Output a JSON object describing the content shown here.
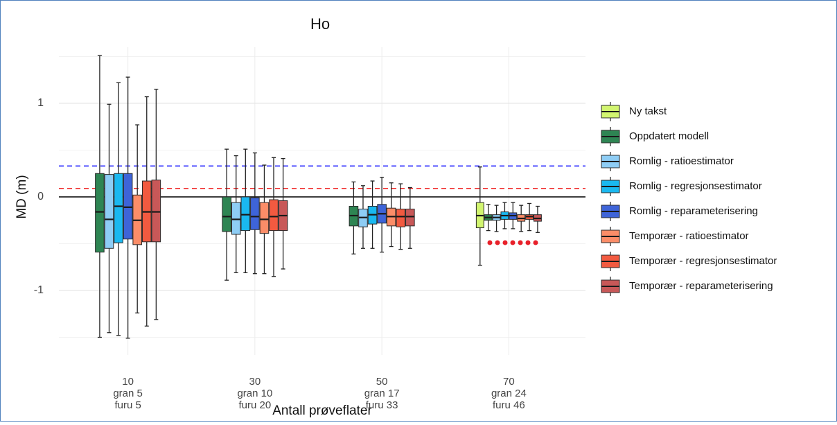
{
  "chart_data": {
    "type": "boxplot",
    "title": "Ho",
    "x_label": "Antall prøveflater",
    "y_label": "MD (m)",
    "categories": [
      [
        "10",
        "gran 5",
        "furu 5"
      ],
      [
        "30",
        "gran 10",
        "furu 20"
      ],
      [
        "50",
        "gran 17",
        "furu 33"
      ],
      [
        "70",
        "gran 24",
        "furu 46"
      ]
    ],
    "ylim": [
      -1.6,
      1.6
    ],
    "yticks": [
      -1,
      0,
      1
    ],
    "minor_yticks": [
      -1.5,
      -0.5,
      0.5,
      1.5
    ],
    "grid": true,
    "legend_position": "right",
    "hlines": [
      {
        "value": 0.33,
        "color": "#2020ff",
        "dashed": true
      },
      {
        "value": 0.09,
        "color": "#f03030",
        "dashed": true
      },
      {
        "value": 0,
        "color": "#222222",
        "dashed": false
      }
    ],
    "series": [
      {
        "name": "Ny takst",
        "color": "#d2f570",
        "boxes": [
          null,
          null,
          null,
          {
            "low": -0.73,
            "q1": -0.33,
            "median": -0.2,
            "q3": -0.06,
            "high": 0.32
          }
        ]
      },
      {
        "name": "Oppdatert modell",
        "color": "#2e8553",
        "boxes": [
          {
            "low": -1.5,
            "q1": -0.59,
            "median": -0.16,
            "q3": 0.25,
            "high": 1.51
          },
          {
            "low": -0.89,
            "q1": -0.37,
            "median": -0.21,
            "q3": 0.0,
            "high": 0.51
          },
          {
            "low": -0.61,
            "q1": -0.31,
            "median": -0.2,
            "q3": -0.1,
            "high": 0.16
          },
          {
            "low": -0.36,
            "q1": -0.25,
            "median": -0.22,
            "q3": -0.19,
            "high": -0.08
          }
        ]
      },
      {
        "name": "Romlig - ratioestimator",
        "color": "#8ecdf5",
        "boxes": [
          {
            "low": -1.45,
            "q1": -0.55,
            "median": -0.24,
            "q3": 0.24,
            "high": 0.99
          },
          {
            "low": -0.81,
            "q1": -0.4,
            "median": -0.24,
            "q3": -0.06,
            "high": 0.44
          },
          {
            "low": -0.55,
            "q1": -0.32,
            "median": -0.22,
            "q3": -0.13,
            "high": 0.12
          },
          {
            "low": -0.37,
            "q1": -0.25,
            "median": -0.22,
            "q3": -0.19,
            "high": -0.09
          }
        ]
      },
      {
        "name": "Romlig - regresjonsestimator",
        "color": "#1ab8f0",
        "boxes": [
          {
            "low": -1.48,
            "q1": -0.49,
            "median": -0.1,
            "q3": 0.25,
            "high": 1.22
          },
          {
            "low": -0.81,
            "q1": -0.36,
            "median": -0.19,
            "q3": 0.0,
            "high": 0.51
          },
          {
            "low": -0.55,
            "q1": -0.29,
            "median": -0.19,
            "q3": -0.1,
            "high": 0.17
          },
          {
            "low": -0.34,
            "q1": -0.24,
            "median": -0.2,
            "q3": -0.16,
            "high": -0.06
          }
        ]
      },
      {
        "name": "Romlig - reparameterisering",
        "color": "#3e64d8",
        "boxes": [
          {
            "low": -1.51,
            "q1": -0.45,
            "median": -0.11,
            "q3": 0.25,
            "high": 1.28
          },
          {
            "low": -0.82,
            "q1": -0.35,
            "median": -0.21,
            "q3": -0.01,
            "high": 0.47
          },
          {
            "low": -0.59,
            "q1": -0.28,
            "median": -0.18,
            "q3": -0.08,
            "high": 0.21
          },
          {
            "low": -0.34,
            "q1": -0.24,
            "median": -0.2,
            "q3": -0.17,
            "high": -0.06
          }
        ]
      },
      {
        "name": "Temporær - ratioestimator",
        "color": "#fb8d68",
        "boxes": [
          {
            "low": -1.24,
            "q1": -0.51,
            "median": -0.25,
            "q3": 0.02,
            "high": 0.77
          },
          {
            "low": -0.82,
            "q1": -0.39,
            "median": -0.24,
            "q3": -0.06,
            "high": 0.34
          },
          {
            "low": -0.53,
            "q1": -0.31,
            "median": -0.21,
            "q3": -0.12,
            "high": 0.15
          },
          {
            "low": -0.37,
            "q1": -0.26,
            "median": -0.23,
            "q3": -0.19,
            "high": -0.09
          }
        ]
      },
      {
        "name": "Temporær - regresjonsestimator",
        "color": "#f25a40",
        "boxes": [
          {
            "low": -1.38,
            "q1": -0.48,
            "median": -0.16,
            "q3": 0.17,
            "high": 1.07
          },
          {
            "low": -0.85,
            "q1": -0.36,
            "median": -0.21,
            "q3": -0.03,
            "high": 0.42
          },
          {
            "low": -0.56,
            "q1": -0.32,
            "median": -0.21,
            "q3": -0.13,
            "high": 0.14
          },
          {
            "low": -0.36,
            "q1": -0.24,
            "median": -0.21,
            "q3": -0.19,
            "high": -0.07
          }
        ]
      },
      {
        "name": "Temporær - reparameterisering",
        "color": "#c85858",
        "boxes": [
          {
            "low": -1.31,
            "q1": -0.48,
            "median": -0.16,
            "q3": 0.18,
            "high": 1.15
          },
          {
            "low": -0.77,
            "q1": -0.36,
            "median": -0.2,
            "q3": -0.04,
            "high": 0.41
          },
          {
            "low": -0.55,
            "q1": -0.31,
            "median": -0.21,
            "q3": -0.13,
            "high": 0.1
          },
          {
            "low": -0.38,
            "q1": -0.26,
            "median": -0.23,
            "q3": -0.19,
            "high": -0.1
          }
        ]
      }
    ]
  }
}
